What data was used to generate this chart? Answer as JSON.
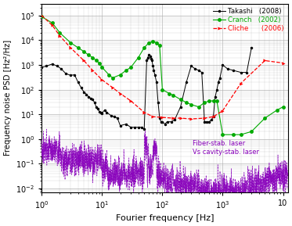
{
  "title": "",
  "xlabel": "Fourier frequency [Hz]",
  "ylabel": "Frequency noise PSD [Hz²/Hz]",
  "xlim": [
    1,
    12000
  ],
  "ylim": [
    0.007,
    300000.0
  ],
  "legend_entries": [
    "Takashi   (2008)",
    "Cranch   (2002)",
    "Cliche      (2006)"
  ],
  "legend_colors": [
    "black",
    "#00aa00",
    "red"
  ],
  "annotation": "Fiber-stab. laser\nVs cavity-stab. laser",
  "annotation_color": "#8800bb",
  "takashi_x": [
    1,
    1.2,
    1.5,
    1.8,
    2.1,
    2.5,
    3.0,
    3.5,
    4,
    4.5,
    5,
    5.5,
    6,
    6.5,
    7,
    7.5,
    8,
    8.5,
    9,
    9.5,
    10,
    11,
    12,
    14,
    16,
    18,
    20,
    25,
    30,
    35,
    40,
    45,
    50,
    55,
    57,
    60,
    63,
    65,
    67,
    70,
    72,
    75,
    80,
    85,
    90,
    95,
    100,
    110,
    120,
    140,
    160,
    200,
    250,
    300,
    350,
    400,
    450,
    500,
    550,
    600,
    650,
    700,
    750,
    800,
    850,
    900,
    1000,
    1200,
    1500,
    2000,
    2500,
    3000
  ],
  "takashi_y": [
    800,
    900,
    1100,
    900,
    700,
    450,
    380,
    400,
    200,
    120,
    80,
    65,
    50,
    45,
    40,
    30,
    20,
    17,
    13,
    12,
    11,
    15,
    12,
    9,
    8,
    7,
    3.5,
    4,
    3,
    3,
    3,
    3,
    2.5,
    1500,
    2000,
    2500,
    2200,
    1800,
    1500,
    900,
    600,
    400,
    200,
    30,
    7,
    5,
    5,
    4,
    5,
    5,
    6,
    20,
    200,
    900,
    700,
    600,
    500,
    5,
    5,
    5,
    6,
    8,
    50,
    100,
    200,
    300,
    1000,
    700,
    600,
    500,
    500,
    5000
  ],
  "cranch_x": [
    1,
    1.5,
    2,
    3,
    4,
    5,
    6,
    7,
    8,
    9,
    10,
    13,
    15,
    20,
    25,
    30,
    40,
    50,
    60,
    70,
    80,
    90,
    100,
    130,
    150,
    200,
    250,
    300,
    400,
    500,
    600,
    700,
    800,
    1000,
    1500,
    2000,
    3000,
    5000,
    8000,
    10000
  ],
  "cranch_y": [
    90000.0,
    50000.0,
    20000.0,
    8000,
    5000,
    3500,
    2500,
    2000,
    1500,
    1200,
    800,
    400,
    300,
    400,
    600,
    800,
    2000,
    5000,
    8000,
    9000,
    8000,
    6000,
    100,
    70,
    60,
    40,
    30,
    25,
    20,
    30,
    35,
    35,
    35,
    1.5,
    1.5,
    1.5,
    2,
    7,
    15,
    20
  ],
  "cliche_x": [
    1,
    1.5,
    2,
    3,
    5,
    7,
    10,
    15,
    20,
    30,
    50,
    70,
    100,
    150,
    200,
    300,
    500,
    700,
    1000,
    2000,
    5000,
    10000
  ],
  "cliche_y": [
    100000.0,
    40000.0,
    15000.0,
    5000,
    1500,
    600,
    250,
    120,
    70,
    35,
    12,
    8,
    7.5,
    7,
    7,
    6.5,
    7,
    8,
    14,
    180,
    1500,
    1200
  ],
  "background_color": "white",
  "grid_color": "#aaaaaa",
  "fiber_color": "#8800bb",
  "fiber_seed": 12345
}
